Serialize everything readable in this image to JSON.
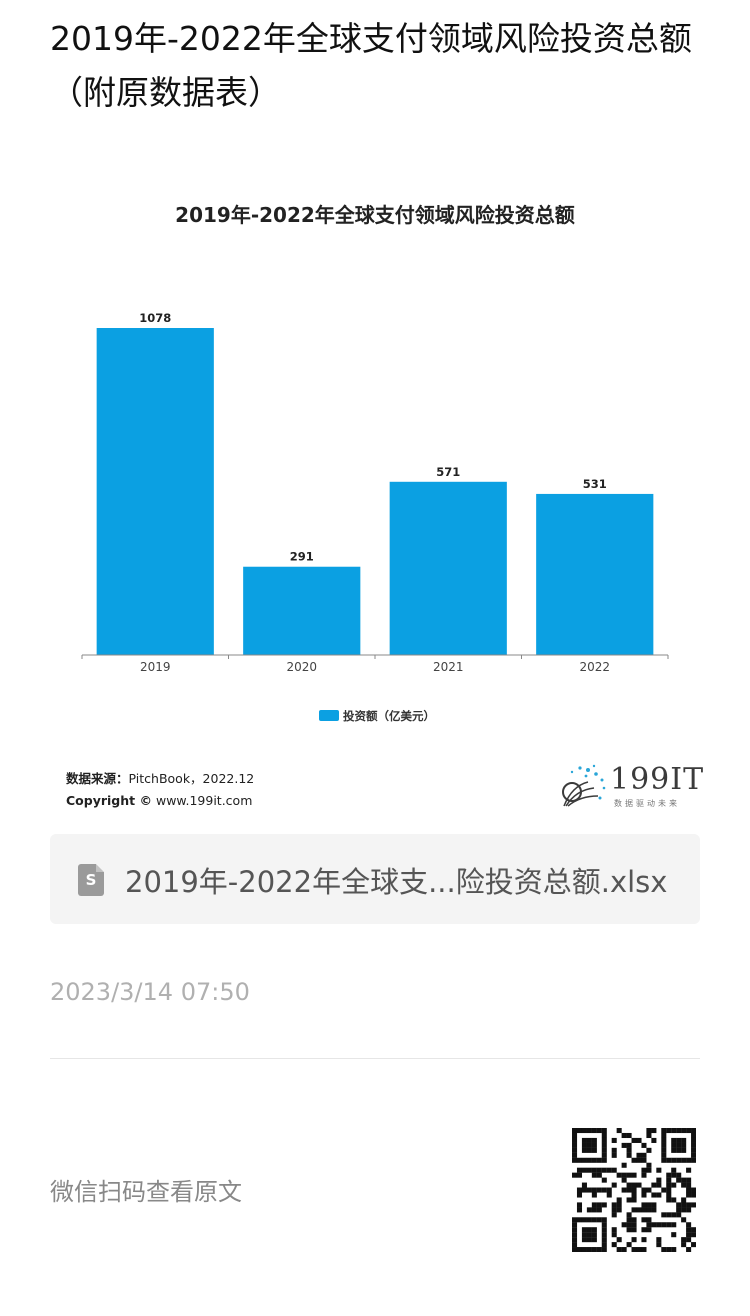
{
  "page": {
    "title": "2019年-2022年全球支付领域风险投资总额（附原数据表）"
  },
  "chart_data": {
    "type": "bar",
    "title": "2019年-2022年全球支付领域风险投资总额",
    "categories": [
      "2019",
      "2020",
      "2021",
      "2022"
    ],
    "series": [
      {
        "name": "投资额（亿美元）",
        "values": [
          1078,
          291,
          571,
          531
        ],
        "color": "#0ba0e2"
      }
    ],
    "data_labels": true,
    "ylim": [
      0,
      1078
    ],
    "grid": false,
    "legend_position": "bottom-center"
  },
  "source": {
    "label": "数据来源：",
    "text": "PitchBook，2022.12",
    "copyright_label": "Copyright ©",
    "copyright_text": "www.199it.com"
  },
  "logo": {
    "text": "199IT",
    "subtitle": "数据驱动未来"
  },
  "attachment": {
    "file_name": "2019年-2022年全球支...险投资总额.xlsx",
    "icon": "spreadsheet-file-icon",
    "icon_letter": "S"
  },
  "post": {
    "date": "2023/3/14 07:50",
    "qr_hint": "微信扫码查看原文"
  }
}
